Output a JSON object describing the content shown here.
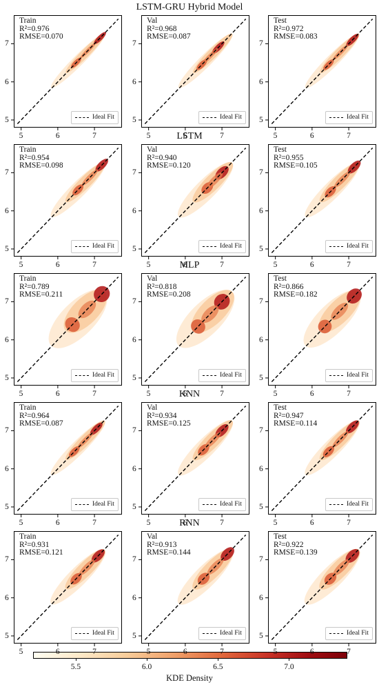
{
  "chart_data": {
    "type": "heatmap",
    "description_kind": "KDE density scatter of predicted vs actual with ideal-fit diagonal",
    "axis_range": [
      4.8,
      7.75
    ],
    "xticks": [
      "5",
      "6",
      "7"
    ],
    "yticks": [
      "5",
      "6",
      "7"
    ],
    "legend_label": "Ideal Fit",
    "legend_placement": "lower-right",
    "ideal_fit_style": "black dashed line y = x",
    "colormap": "OrRd",
    "colorbar": {
      "label": "KDE Density",
      "ticks": [
        "5.5",
        "6.0",
        "6.5",
        "7.0"
      ],
      "range": [
        5.2,
        7.4
      ],
      "orientation": "horizontal"
    },
    "models": [
      {
        "title": "LSTM-GRU Hybrid Model",
        "panels": [
          {
            "split": "Train",
            "r2": "R²=0.976",
            "rmse": "RMSE=0.070",
            "spread": 0.07,
            "dense": [
              6.5,
              7.15
            ]
          },
          {
            "split": "Val",
            "r2": "R²=0.968",
            "rmse": "RMSE=0.087",
            "spread": 0.08,
            "dense": [
              6.45,
              6.9
            ]
          },
          {
            "split": "Test",
            "r2": "R²=0.972",
            "rmse": "RMSE=0.083",
            "spread": 0.08,
            "dense": [
              6.45,
              7.1
            ]
          }
        ]
      },
      {
        "title": "LSTM",
        "panels": [
          {
            "split": "Train",
            "r2": "R²=0.954",
            "rmse": "RMSE=0.098",
            "spread": 0.1,
            "dense": [
              6.55,
              7.2
            ]
          },
          {
            "split": "Val",
            "r2": "R²=0.940",
            "rmse": "RMSE=0.120",
            "spread": 0.13,
            "dense": [
              6.6,
              7.0
            ]
          },
          {
            "split": "Test",
            "r2": "R²=0.955",
            "rmse": "RMSE=0.105",
            "spread": 0.11,
            "dense": [
              6.5,
              7.15
            ]
          }
        ]
      },
      {
        "title": "MLP",
        "panels": [
          {
            "split": "Train",
            "r2": "R²=0.789",
            "rmse": "RMSE=0.211",
            "spread": 0.22,
            "dense": [
              6.4,
              7.2
            ]
          },
          {
            "split": "Val",
            "r2": "R²=0.818",
            "rmse": "RMSE=0.208",
            "spread": 0.21,
            "dense": [
              6.35,
              7.0
            ]
          },
          {
            "split": "Test",
            "r2": "R²=0.866",
            "rmse": "RMSE=0.182",
            "spread": 0.19,
            "dense": [
              6.35,
              7.15
            ]
          }
        ]
      },
      {
        "title": "KNN",
        "panels": [
          {
            "split": "Train",
            "r2": "R²=0.964",
            "rmse": "RMSE=0.087",
            "spread": 0.09,
            "dense": [
              6.45,
              7.05
            ]
          },
          {
            "split": "Val",
            "r2": "R²=0.934",
            "rmse": "RMSE=0.125",
            "spread": 0.12,
            "dense": [
              6.5,
              7.0
            ]
          },
          {
            "split": "Test",
            "r2": "R²=0.947",
            "rmse": "RMSE=0.114",
            "spread": 0.11,
            "dense": [
              6.45,
              7.1
            ]
          }
        ]
      },
      {
        "title": "RNN",
        "panels": [
          {
            "split": "Train",
            "r2": "R²=0.931",
            "rmse": "RMSE=0.121",
            "spread": 0.12,
            "dense": [
              6.5,
              7.1
            ]
          },
          {
            "split": "Val",
            "r2": "R²=0.913",
            "rmse": "RMSE=0.144",
            "spread": 0.14,
            "dense": [
              6.5,
              7.15
            ]
          },
          {
            "split": "Test",
            "r2": "R²=0.922",
            "rmse": "RMSE=0.139",
            "spread": 0.14,
            "dense": [
              6.5,
              7.1
            ]
          }
        ]
      }
    ]
  }
}
